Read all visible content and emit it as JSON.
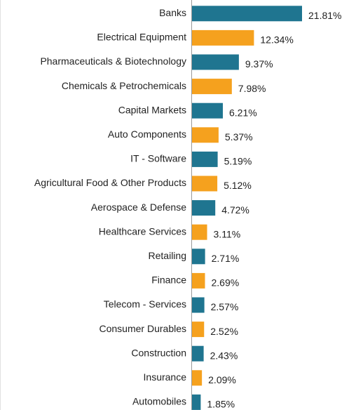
{
  "chart_data": {
    "type": "barh",
    "categories": [
      "Banks",
      "Electrical Equipment",
      "Pharmaceuticals & Biotechnology",
      "Chemicals & Petrochemicals",
      "Capital Markets",
      "Auto Components",
      "IT - Software",
      "Agricultural Food & Other Products",
      "Aerospace & Defense",
      "Healthcare Services",
      "Retailing",
      "Finance",
      "Telecom - Services",
      "Consumer Durables",
      "Construction",
      "Insurance",
      "Automobiles"
    ],
    "values": [
      21.81,
      12.34,
      9.37,
      7.98,
      6.21,
      5.37,
      5.19,
      5.12,
      4.72,
      3.11,
      2.71,
      2.69,
      2.57,
      2.52,
      2.43,
      2.09,
      1.85
    ],
    "value_labels": [
      "21.81%",
      "12.34%",
      "9.37%",
      "7.98%",
      "6.21%",
      "5.37%",
      "5.19%",
      "5.12%",
      "4.72%",
      "3.11%",
      "2.71%",
      "2.69%",
      "2.57%",
      "2.52%",
      "2.43%",
      "2.09%",
      "1.85%"
    ],
    "colors": [
      "#1f7590",
      "#f5a11e"
    ]
  }
}
